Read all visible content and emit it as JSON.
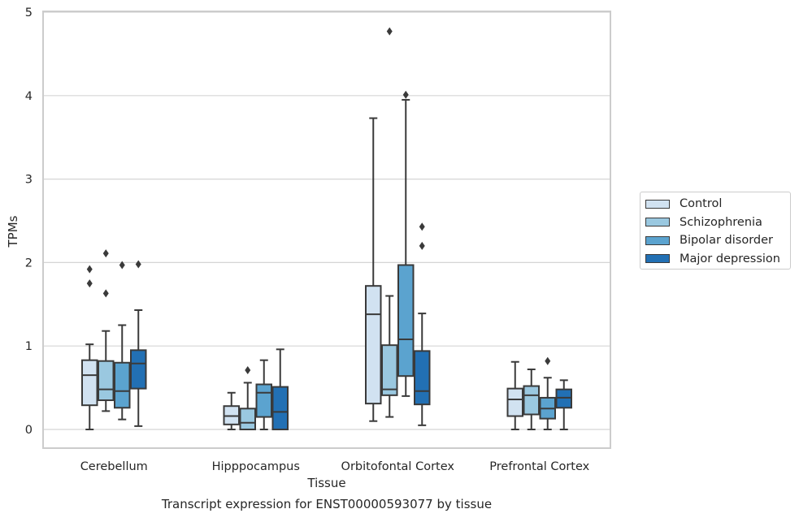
{
  "chart_data": {
    "type": "box",
    "title": "Transcript expression for ENST00000593077 by tissue",
    "xlabel": "Tissue",
    "ylabel": "TPMs",
    "ylim": [
      -0.22,
      5.0
    ],
    "yticks": [
      0,
      1,
      2,
      3,
      4,
      5
    ],
    "grid": "horizontal",
    "legend_position": "right",
    "categories": [
      "Cerebellum",
      "Hipppocampus",
      "Orbitofontal Cortex",
      "Prefrontal Cortex"
    ],
    "series": [
      {
        "name": "Control",
        "color": "#d1e2f1",
        "boxes": [
          {
            "whisker_low": 0.0,
            "q1": 0.29,
            "median": 0.65,
            "q3": 0.83,
            "whisker_high": 1.02,
            "outliers": [
              1.75,
              1.92
            ]
          },
          {
            "whisker_low": 0.0,
            "q1": 0.06,
            "median": 0.16,
            "q3": 0.28,
            "whisker_high": 0.44,
            "outliers": []
          },
          {
            "whisker_low": 0.1,
            "q1": 0.31,
            "median": 1.38,
            "q3": 1.72,
            "whisker_high": 3.73,
            "outliers": []
          },
          {
            "whisker_low": 0.0,
            "q1": 0.16,
            "median": 0.36,
            "q3": 0.49,
            "whisker_high": 0.81,
            "outliers": []
          }
        ]
      },
      {
        "name": "Schizophrenia",
        "color": "#9ac8e0",
        "boxes": [
          {
            "whisker_low": 0.22,
            "q1": 0.35,
            "median": 0.48,
            "q3": 0.82,
            "whisker_high": 1.18,
            "outliers": [
              1.63,
              2.11
            ]
          },
          {
            "whisker_low": 0.0,
            "q1": 0.0,
            "median": 0.08,
            "q3": 0.25,
            "whisker_high": 0.56,
            "outliers": [
              0.71
            ]
          },
          {
            "whisker_low": 0.15,
            "q1": 0.41,
            "median": 0.48,
            "q3": 1.01,
            "whisker_high": 1.6,
            "outliers": [
              4.77
            ]
          },
          {
            "whisker_low": 0.0,
            "q1": 0.18,
            "median": 0.41,
            "q3": 0.52,
            "whisker_high": 0.72,
            "outliers": []
          }
        ]
      },
      {
        "name": "Bipolar disorder",
        "color": "#5ba3cf",
        "boxes": [
          {
            "whisker_low": 0.12,
            "q1": 0.26,
            "median": 0.46,
            "q3": 0.8,
            "whisker_high": 1.25,
            "outliers": [
              1.97
            ]
          },
          {
            "whisker_low": 0.0,
            "q1": 0.15,
            "median": 0.44,
            "q3": 0.54,
            "whisker_high": 0.83,
            "outliers": []
          },
          {
            "whisker_low": 0.4,
            "q1": 0.64,
            "median": 1.08,
            "q3": 1.97,
            "whisker_high": 3.95,
            "outliers": [
              4.01
            ]
          },
          {
            "whisker_low": 0.0,
            "q1": 0.13,
            "median": 0.25,
            "q3": 0.38,
            "whisker_high": 0.62,
            "outliers": [
              0.82
            ]
          }
        ]
      },
      {
        "name": "Major depression",
        "color": "#2270b4",
        "boxes": [
          {
            "whisker_low": 0.04,
            "q1": 0.49,
            "median": 0.79,
            "q3": 0.95,
            "whisker_high": 1.43,
            "outliers": [
              1.98
            ]
          },
          {
            "whisker_low": 0.0,
            "q1": 0.0,
            "median": 0.21,
            "q3": 0.51,
            "whisker_high": 0.96,
            "outliers": []
          },
          {
            "whisker_low": 0.05,
            "q1": 0.3,
            "median": 0.46,
            "q3": 0.94,
            "whisker_high": 1.39,
            "outliers": [
              2.2,
              2.43
            ]
          },
          {
            "whisker_low": 0.0,
            "q1": 0.26,
            "median": 0.38,
            "q3": 0.48,
            "whisker_high": 0.59,
            "outliers": []
          }
        ]
      }
    ]
  }
}
